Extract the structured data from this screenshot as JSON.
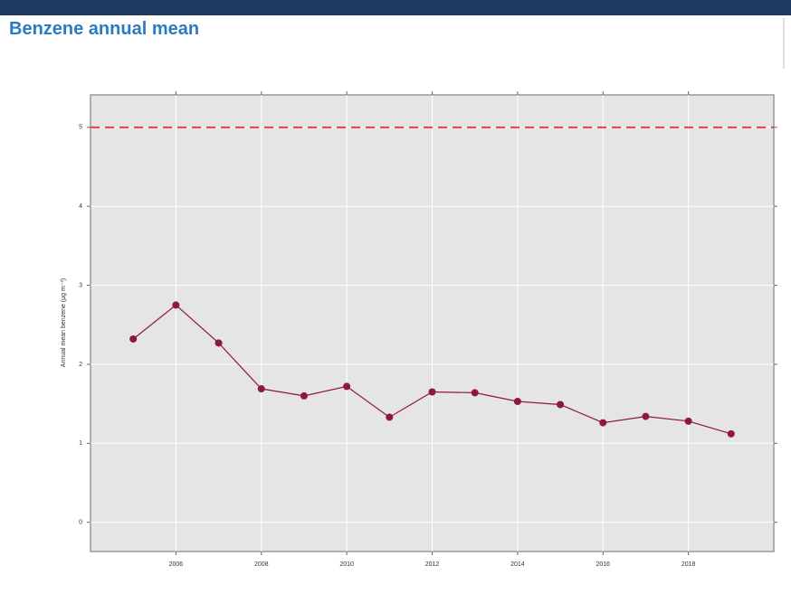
{
  "chart_data": {
    "type": "line",
    "title": "Benzene annual mean",
    "y_label": "Annual mean benzene (µg m⁻³)",
    "x": [
      2005,
      2006,
      2007,
      2008,
      2009,
      2010,
      2011,
      2012,
      2013,
      2014,
      2015,
      2016,
      2017,
      2018,
      2019
    ],
    "series": [
      {
        "name": "Annual mean benzene",
        "color": "#8e1742",
        "values": [
          2.32,
          2.75,
          2.27,
          1.69,
          1.6,
          1.72,
          1.33,
          1.65,
          1.64,
          1.53,
          1.49,
          1.26,
          1.34,
          1.28,
          1.12
        ]
      }
    ],
    "reference_line": {
      "value": 5,
      "color": "#e8413c"
    },
    "xlim": [
      2004,
      2020
    ],
    "xticks": [
      2006,
      2008,
      2010,
      2012,
      2014,
      2016,
      2018
    ],
    "ylim": [
      -0.37,
      5.41
    ],
    "yticks": [
      0,
      1,
      2,
      3,
      4,
      5
    ],
    "grid": true
  }
}
